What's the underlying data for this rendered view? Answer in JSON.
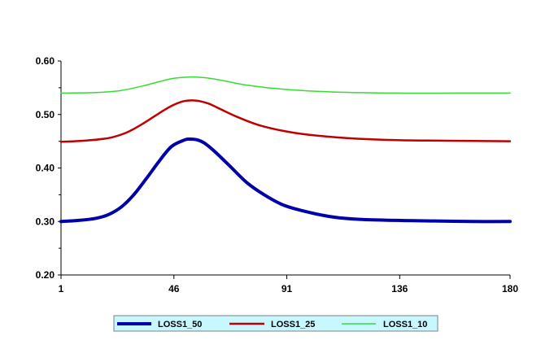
{
  "chart_data": {
    "type": "line",
    "title": "",
    "xlabel": "",
    "ylabel": "",
    "xlim": [
      1,
      180
    ],
    "ylim": [
      0.2,
      0.6
    ],
    "x_ticks": [
      1,
      46,
      91,
      136,
      180
    ],
    "y_ticks": [
      "0.20",
      "0.30",
      "0.40",
      "0.50",
      "0.60"
    ],
    "grid": false,
    "legend_position": "bottom",
    "legend_background": "#c8f8ff",
    "series": [
      {
        "name": "LOSS1_50",
        "color": "#0000a8",
        "x": [
          1,
          8,
          15,
          20,
          25,
          30,
          35,
          40,
          45,
          50,
          52,
          55,
          58,
          62,
          68,
          75,
          82,
          90,
          100,
          110,
          120,
          135,
          150,
          165,
          180
        ],
        "y": [
          0.3,
          0.302,
          0.306,
          0.313,
          0.327,
          0.35,
          0.38,
          0.412,
          0.44,
          0.452,
          0.454,
          0.453,
          0.447,
          0.432,
          0.405,
          0.373,
          0.35,
          0.33,
          0.317,
          0.308,
          0.304,
          0.302,
          0.301,
          0.3,
          0.3
        ]
      },
      {
        "name": "LOSS1_25",
        "color": "#c00000",
        "x": [
          1,
          10,
          20,
          27,
          33,
          40,
          45,
          50,
          55,
          60,
          65,
          72,
          80,
          90,
          100,
          115,
          135,
          155,
          180
        ],
        "y": [
          0.449,
          0.451,
          0.456,
          0.466,
          0.481,
          0.502,
          0.516,
          0.525,
          0.526,
          0.52,
          0.509,
          0.494,
          0.48,
          0.469,
          0.462,
          0.456,
          0.452,
          0.451,
          0.45
        ]
      },
      {
        "name": "LOSS1_10",
        "color": "#33dd33",
        "x": [
          1,
          15,
          25,
          35,
          45,
          52,
          58,
          65,
          75,
          90,
          110,
          135,
          160,
          180
        ],
        "y": [
          0.54,
          0.541,
          0.545,
          0.555,
          0.567,
          0.57,
          0.569,
          0.564,
          0.555,
          0.547,
          0.542,
          0.54,
          0.54,
          0.54
        ]
      }
    ]
  }
}
